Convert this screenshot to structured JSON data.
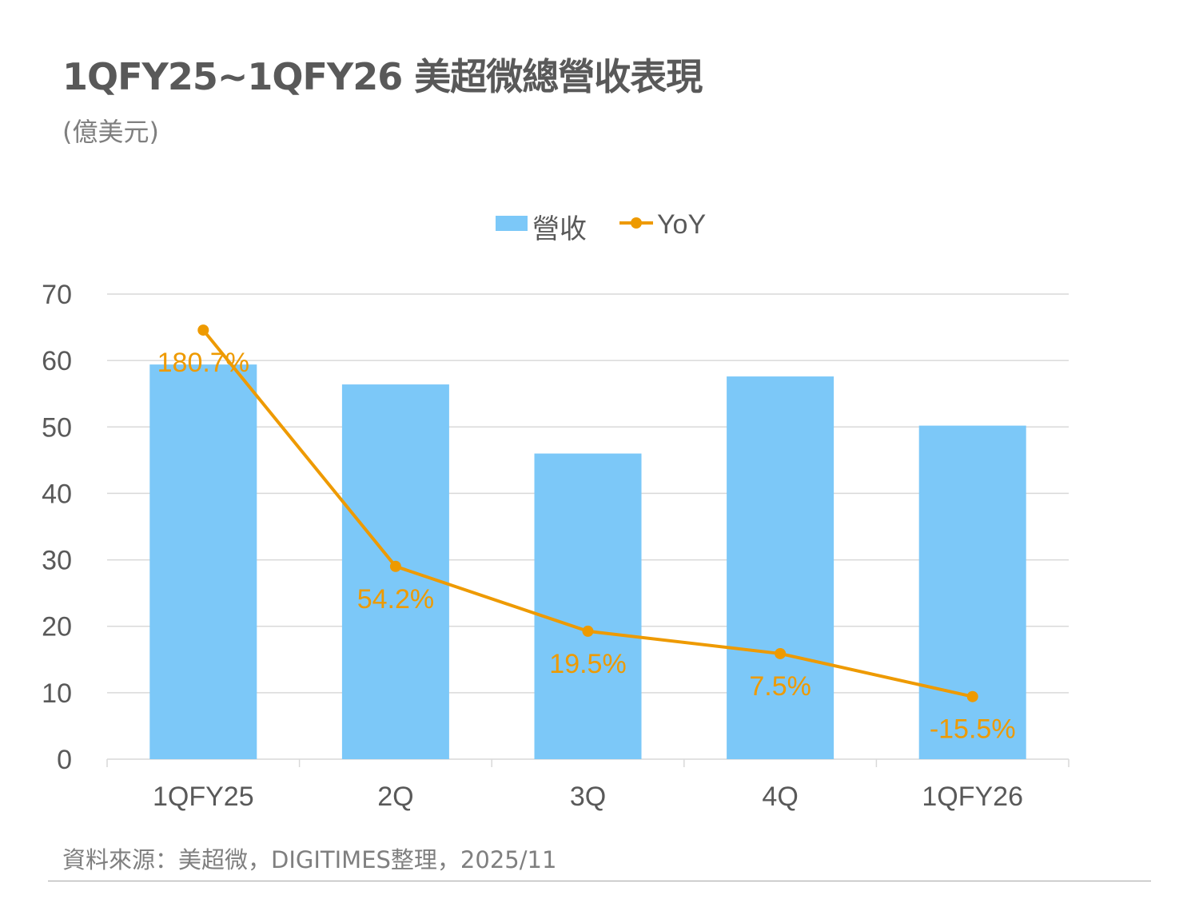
{
  "chart_data": {
    "type": "bar+line",
    "title": "1QFY25~1QFY26 美超微總營收表現",
    "unit": "(億美元)",
    "categories": [
      "1QFY25",
      "2Q",
      "3Q",
      "4Q",
      "1QFY26"
    ],
    "series": [
      {
        "name": "營收",
        "type": "bar",
        "axis": "primary",
        "color": "#7cc8f8",
        "values": [
          59.4,
          56.4,
          46.0,
          57.6,
          50.2
        ]
      },
      {
        "name": "YoY",
        "type": "line",
        "axis": "secondary",
        "color": "#ee9a00",
        "values": [
          180.7,
          54.2,
          19.5,
          7.5,
          -15.5
        ],
        "labels": [
          "180.7%",
          "54.2%",
          "19.5%",
          "7.5%",
          "-15.5%"
        ]
      }
    ],
    "ylim": [
      0,
      70
    ],
    "yticks": [
      "0",
      "10",
      "20",
      "30",
      "40",
      "50",
      "60",
      "70"
    ],
    "y2lim": [
      -49,
      200
    ],
    "grid": true,
    "legend": "top-center",
    "source": "資料來源：美超微，DIGITIMES整理，2025/11"
  }
}
